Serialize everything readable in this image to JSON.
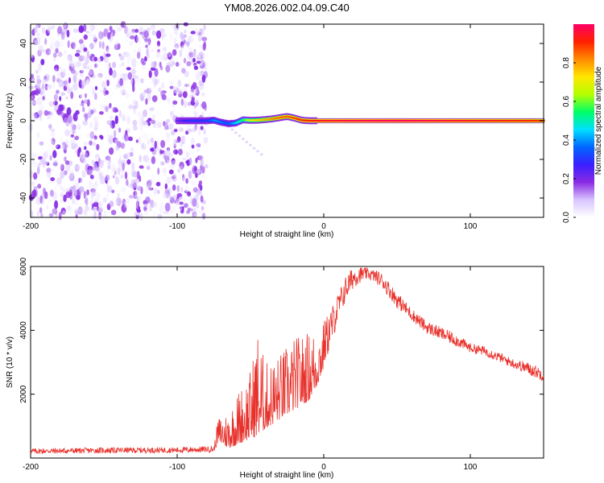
{
  "title": "YM08.2026.002.04.09.C40",
  "colors": {
    "line": "#e8302a",
    "axis": "#000000",
    "background": "#ffffff"
  },
  "chart_data": [
    {
      "type": "heatmap",
      "xlabel": "Height of straight line (km)",
      "ylabel": "Frequency (Hz)",
      "xlim": [
        -200,
        150
      ],
      "ylim": [
        -50,
        50
      ],
      "xticks": [
        -200,
        -100,
        0,
        100
      ],
      "yticks": [
        -40,
        -20,
        0,
        20,
        40
      ],
      "colorbar": {
        "label": "Normalized spectral amplitude",
        "range": [
          0,
          1
        ],
        "ticks": [
          0.0,
          0.2,
          0.4,
          0.6,
          0.8
        ],
        "tick_labels": [
          "0.0",
          "0.2",
          "0.4",
          "0.6",
          "0.8"
        ],
        "colormap": [
          "#ffffff",
          "#d8c4ff",
          "#8a2be2",
          "#3a1fff",
          "#0066ff",
          "#00e0ff",
          "#00ff66",
          "#b4ff00",
          "#ffe600",
          "#ff8a00",
          "#ff2000",
          "#ff0066"
        ]
      },
      "noise_region_x": [
        -200,
        -80
      ],
      "signal_band": {
        "x_start": -100,
        "x_end": 150,
        "trace": [
          {
            "x": -100,
            "f": 0.0,
            "amp": 0.22
          },
          {
            "x": -90,
            "f": 0.0,
            "amp": 0.3
          },
          {
            "x": -80,
            "f": 0.0,
            "amp": 0.3
          },
          {
            "x": -75,
            "f": 0.3,
            "amp": 0.4
          },
          {
            "x": -70,
            "f": -0.8,
            "amp": 0.38
          },
          {
            "x": -65,
            "f": -1.5,
            "amp": 0.35
          },
          {
            "x": -60,
            "f": -1.2,
            "amp": 0.45
          },
          {
            "x": -55,
            "f": 0.5,
            "amp": 0.55
          },
          {
            "x": -50,
            "f": 0.2,
            "amp": 0.7
          },
          {
            "x": -45,
            "f": 0.3,
            "amp": 0.75
          },
          {
            "x": -40,
            "f": 0.6,
            "amp": 0.78
          },
          {
            "x": -35,
            "f": 1.0,
            "amp": 0.82
          },
          {
            "x": -30,
            "f": 1.6,
            "amp": 0.85
          },
          {
            "x": -25,
            "f": 2.2,
            "amp": 0.85
          },
          {
            "x": -20,
            "f": 1.4,
            "amp": 0.88
          },
          {
            "x": -15,
            "f": 0.3,
            "amp": 0.9
          },
          {
            "x": -10,
            "f": 0.0,
            "amp": 0.92
          },
          {
            "x": 0,
            "f": 0.0,
            "amp": 0.95
          },
          {
            "x": 20,
            "f": 0.0,
            "amp": 0.98
          },
          {
            "x": 50,
            "f": 0.0,
            "amp": 1.0
          },
          {
            "x": 100,
            "f": 0.0,
            "amp": 0.95
          },
          {
            "x": 150,
            "f": 0.0,
            "amp": 0.9
          }
        ]
      }
    },
    {
      "type": "line",
      "xlabel": "Height of straight line (km)",
      "ylabel": "SNR (10 * v/v)",
      "xlim": [
        -200,
        150
      ],
      "ylim": [
        0,
        6000
      ],
      "xticks": [
        -200,
        -100,
        0,
        100
      ],
      "yticks": [
        2000,
        4000,
        6000
      ],
      "series": [
        {
          "name": "SNR",
          "envelope": {
            "x": [
              -200,
              -150,
              -100,
              -75,
              -72,
              -65,
              -60,
              -50,
              -45,
              -40,
              -30,
              -20,
              -10,
              -5,
              0,
              5,
              10,
              15,
              20,
              25,
              30,
              35,
              40,
              45,
              50,
              60,
              70,
              80,
              90,
              100,
              110,
              120,
              130,
              140,
              150
            ],
            "low": [
              130,
              150,
              160,
              180,
              500,
              300,
              400,
              600,
              700,
              900,
              1200,
              1500,
              1800,
              2200,
              2800,
              3500,
              4300,
              4900,
              5300,
              5500,
              5600,
              5500,
              5300,
              5000,
              4700,
              4300,
              3900,
              3700,
              3500,
              3300,
              3200,
              3000,
              2800,
              2600,
              2400
            ],
            "high": [
              300,
              330,
              340,
              380,
              1300,
              1500,
              2000,
              2800,
              4100,
              3000,
              3300,
              3800,
              4000,
              4100,
              4300,
              4700,
              5200,
              5700,
              6000,
              6000,
              5950,
              5900,
              5800,
              5500,
              5200,
              4700,
              4300,
              4100,
              3900,
              3600,
              3500,
              3300,
              3100,
              3000,
              2800
            ]
          }
        }
      ]
    }
  ]
}
